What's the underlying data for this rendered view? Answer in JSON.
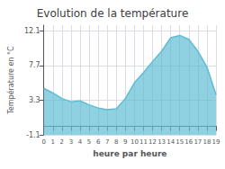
{
  "chart_data": {
    "type": "area",
    "title": "Evolution de la température",
    "x_label": "heure par heure",
    "y_label": "Température en °C",
    "x": [
      0,
      1,
      2,
      3,
      4,
      5,
      6,
      7,
      8,
      9,
      10,
      11,
      12,
      13,
      14,
      15,
      16,
      17,
      18,
      19
    ],
    "values": [
      4.8,
      4.2,
      3.5,
      3.1,
      3.2,
      2.7,
      2.3,
      2.1,
      2.2,
      3.5,
      5.5,
      6.8,
      8.2,
      9.5,
      11.2,
      11.5,
      11.0,
      9.5,
      7.5,
      4.0
    ],
    "color": "#60bcd4",
    "xlim": [
      0,
      19
    ],
    "xticks": [
      0,
      1,
      2,
      3,
      4,
      5,
      6,
      7,
      8,
      9,
      10,
      11,
      12,
      13,
      14,
      15,
      16,
      17,
      18,
      19
    ],
    "ylim": [
      -1.1,
      12.8
    ],
    "yticks": [
      -1.1,
      3.3,
      7.7,
      12.1
    ],
    "grid": true
  }
}
